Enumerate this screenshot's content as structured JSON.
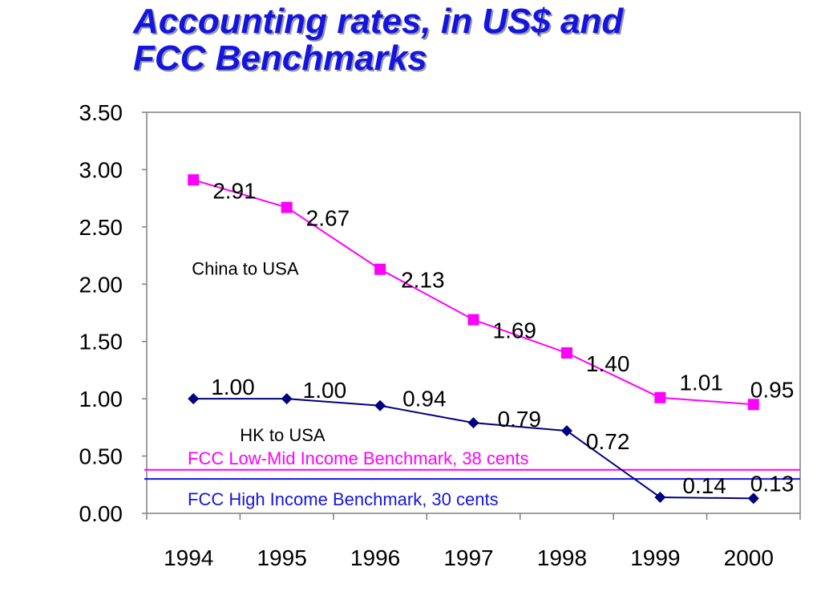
{
  "chart_data": {
    "type": "line",
    "title_lines": [
      "Accounting rates, in US$ and",
      "FCC Benchmarks"
    ],
    "categories": [
      "1994",
      "1995",
      "1996",
      "1997",
      "1998",
      "1999",
      "2000"
    ],
    "ylim": [
      0,
      3.5
    ],
    "yticks": [
      "0.00",
      "0.50",
      "1.00",
      "1.50",
      "2.00",
      "2.50",
      "3.00",
      "3.50"
    ],
    "grid": false,
    "series": [
      {
        "name": "China to USA",
        "color": "#ff00ff",
        "marker": "square",
        "values": [
          2.91,
          2.67,
          2.13,
          1.69,
          1.4,
          1.01,
          0.95
        ],
        "labels": [
          "2.91",
          "2.67",
          "2.13",
          "1.69",
          "1.40",
          "1.01",
          "0.95"
        ]
      },
      {
        "name": "HK to USA",
        "color": "#000080",
        "marker": "diamond",
        "values": [
          1.0,
          1.0,
          0.94,
          0.79,
          0.72,
          0.14,
          0.13
        ],
        "labels": [
          "1.00",
          "1.00",
          "0.94",
          "0.79",
          "0.72",
          "0.14",
          "0.13"
        ]
      }
    ],
    "benchmarks": [
      {
        "label": "FCC Low-Mid Income Benchmark, 38 cents",
        "value": 0.38,
        "color": "#ff00ff"
      },
      {
        "label": "FCC High Income Benchmark, 30 cents",
        "value": 0.3,
        "color": "#1515e0"
      }
    ]
  }
}
